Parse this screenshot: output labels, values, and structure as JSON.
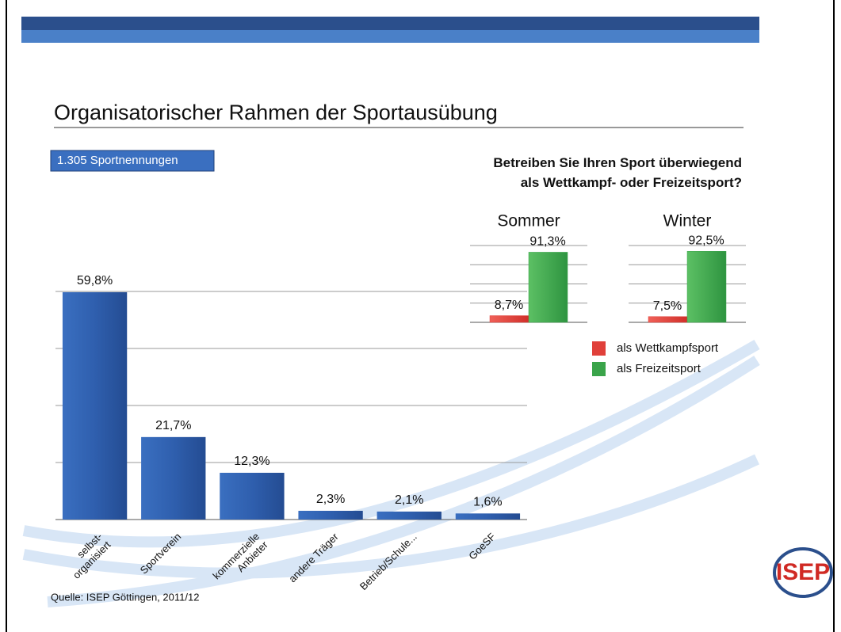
{
  "header": {
    "title": "Organisatorischer Rahmen der Sportausübung",
    "badge": "1.305 Sportnennungen",
    "source": "Quelle: ISEP Göttingen, 2011/12",
    "logo": "ISEP"
  },
  "chart_data": [
    {
      "type": "bar",
      "categories": [
        "selbst-\norganisiert",
        "Sportverein",
        "kommerzielle\nAnbieter",
        "andere Träger",
        "Betrieb/Schule...",
        "GoeSF"
      ],
      "values": [
        59.8,
        21.7,
        12.3,
        2.3,
        2.1,
        1.6
      ],
      "value_labels": [
        "59,8%",
        "21,7%",
        "12,3%",
        "2,3%",
        "2,1%",
        "1,6%"
      ],
      "color": "#2f5fae",
      "ylim": [
        0,
        60
      ],
      "grid_lines": [
        0,
        15,
        30,
        45,
        60
      ]
    },
    {
      "type": "panel_bar",
      "title": "Betreiben Sie Ihren Sport überwiegend\nals Wettkampf- oder Freizeitsport?",
      "categories": [
        "Sommer",
        "Winter"
      ],
      "series": [
        {
          "name": "als Wettkampfsport",
          "color": "#e0403a",
          "values": [
            8.7,
            7.5
          ],
          "value_labels": [
            "8,7%",
            "7,5%"
          ]
        },
        {
          "name": "als Freizeitsport",
          "color": "#3aa44a",
          "values": [
            91.3,
            92.5
          ],
          "value_labels": [
            "91,3%",
            "92,5%"
          ]
        }
      ],
      "ylim": [
        0,
        100
      ],
      "grid_lines": [
        0,
        25,
        50,
        75,
        100
      ]
    }
  ]
}
